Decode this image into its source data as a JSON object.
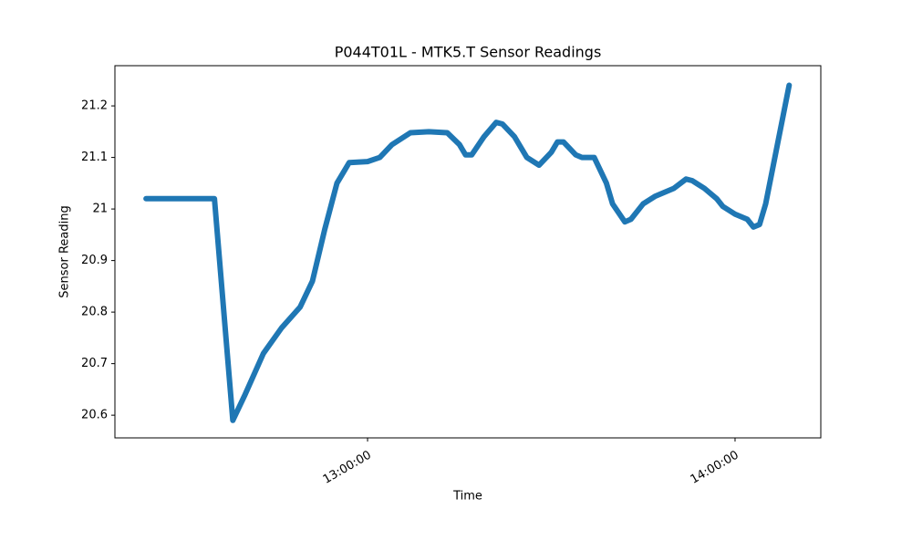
{
  "chart_data": {
    "type": "line",
    "title": "P044T01L - MTK5.T Sensor Readings",
    "x_label": "Time",
    "y_label": "Sensor Reading",
    "x": [
      "12:23:50",
      "12:35:00",
      "12:38:00",
      "12:40:00",
      "12:43:00",
      "12:46:00",
      "12:49:00",
      "12:51:00",
      "12:53:00",
      "12:55:00",
      "12:57:00",
      "13:00:00",
      "13:02:00",
      "13:04:00",
      "13:07:00",
      "13:10:00",
      "13:13:00",
      "13:15:00",
      "13:16:00",
      "13:17:00",
      "13:19:00",
      "13:21:00",
      "13:22:00",
      "13:24:00",
      "13:26:00",
      "13:28:00",
      "13:30:00",
      "13:31:00",
      "13:32:00",
      "13:34:00",
      "13:35:00",
      "13:37:00",
      "13:39:00",
      "13:40:00",
      "13:42:00",
      "13:43:00",
      "13:45:00",
      "13:47:00",
      "13:50:00",
      "13:52:00",
      "13:53:00",
      "13:55:00",
      "13:57:00",
      "13:58:00",
      "14:00:00",
      "14:02:00",
      "14:03:00",
      "14:04:00",
      "14:05:00",
      "14:07:00",
      "14:08:50"
    ],
    "series": [
      {
        "name": "MTK5.T",
        "color": "#1f77b4",
        "values": [
          21.02,
          21.02,
          20.59,
          20.64,
          20.72,
          20.77,
          20.81,
          20.86,
          20.96,
          21.05,
          21.09,
          21.092,
          21.1,
          21.125,
          21.148,
          21.15,
          21.148,
          21.125,
          21.105,
          21.105,
          21.14,
          21.168,
          21.165,
          21.14,
          21.1,
          21.085,
          21.11,
          21.13,
          21.13,
          21.105,
          21.1,
          21.1,
          21.05,
          21.01,
          20.975,
          20.98,
          21.01,
          21.025,
          21.04,
          21.058,
          21.055,
          21.04,
          21.02,
          21.005,
          20.99,
          20.98,
          20.965,
          20.97,
          21.01,
          21.13,
          21.24
        ]
      }
    ],
    "xlim": [
      "12:18:45",
      "14:14:00"
    ],
    "xticks": [
      "13:00:00",
      "14:00:00"
    ],
    "ylim": [
      20.556,
      21.278
    ],
    "yticks": [
      20.6,
      20.7,
      20.8,
      20.9,
      21.0,
      21.1,
      21.2
    ],
    "grid": false
  }
}
